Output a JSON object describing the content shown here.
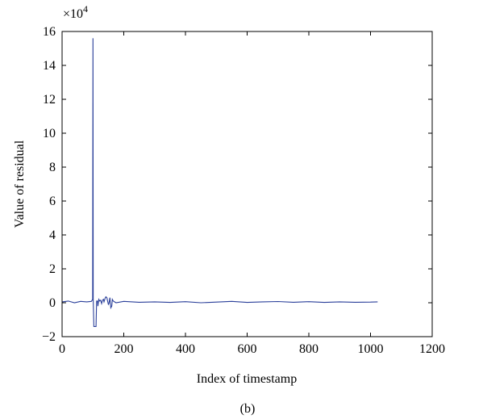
{
  "chart_data": {
    "type": "line",
    "title": "",
    "xlabel": "Index of timestamp",
    "ylabel": "Value of residual",
    "caption": "(b)",
    "y_scale_label": "×10",
    "y_scale_exponent": "4",
    "xlim": [
      0,
      1200
    ],
    "ylim": [
      -2,
      16
    ],
    "xticks": [
      0,
      200,
      400,
      600,
      800,
      1000,
      1200
    ],
    "yticks": [
      -2,
      0,
      2,
      4,
      6,
      8,
      10,
      12,
      14,
      16
    ],
    "grid": false,
    "line_color": "#2a3f9a",
    "series": [
      {
        "x": [
          0,
          20,
          40,
          60,
          80,
          95,
          99,
          100,
          101,
          103,
          104,
          106,
          108,
          110,
          112,
          115,
          116,
          119,
          122,
          125,
          128,
          131,
          134,
          136,
          140,
          142,
          145,
          150,
          152,
          155,
          158,
          161,
          163,
          166,
          170,
          175,
          200,
          250,
          300,
          350,
          400,
          450,
          500,
          550,
          600,
          650,
          700,
          750,
          800,
          850,
          900,
          950,
          1000,
          1023
        ],
        "y": [
          0.05,
          0.1,
          0.0,
          0.08,
          0.05,
          0.08,
          0.2,
          15.6,
          0.2,
          -1.4,
          -1.4,
          -1.4,
          -1.4,
          -1.4,
          0.1,
          0.1,
          -0.2,
          0.2,
          0.1,
          0.15,
          -0.05,
          0.15,
          0.2,
          0.05,
          0.3,
          0.35,
          0.3,
          -0.1,
          -0.05,
          0.3,
          -0.3,
          -0.2,
          0.2,
          0.1,
          0.05,
          0.0,
          0.08,
          0.03,
          0.05,
          0.02,
          0.06,
          0.0,
          0.04,
          0.08,
          0.02,
          0.05,
          0.07,
          0.03,
          0.06,
          0.02,
          0.05,
          0.03,
          0.04,
          0.05
        ]
      }
    ]
  }
}
